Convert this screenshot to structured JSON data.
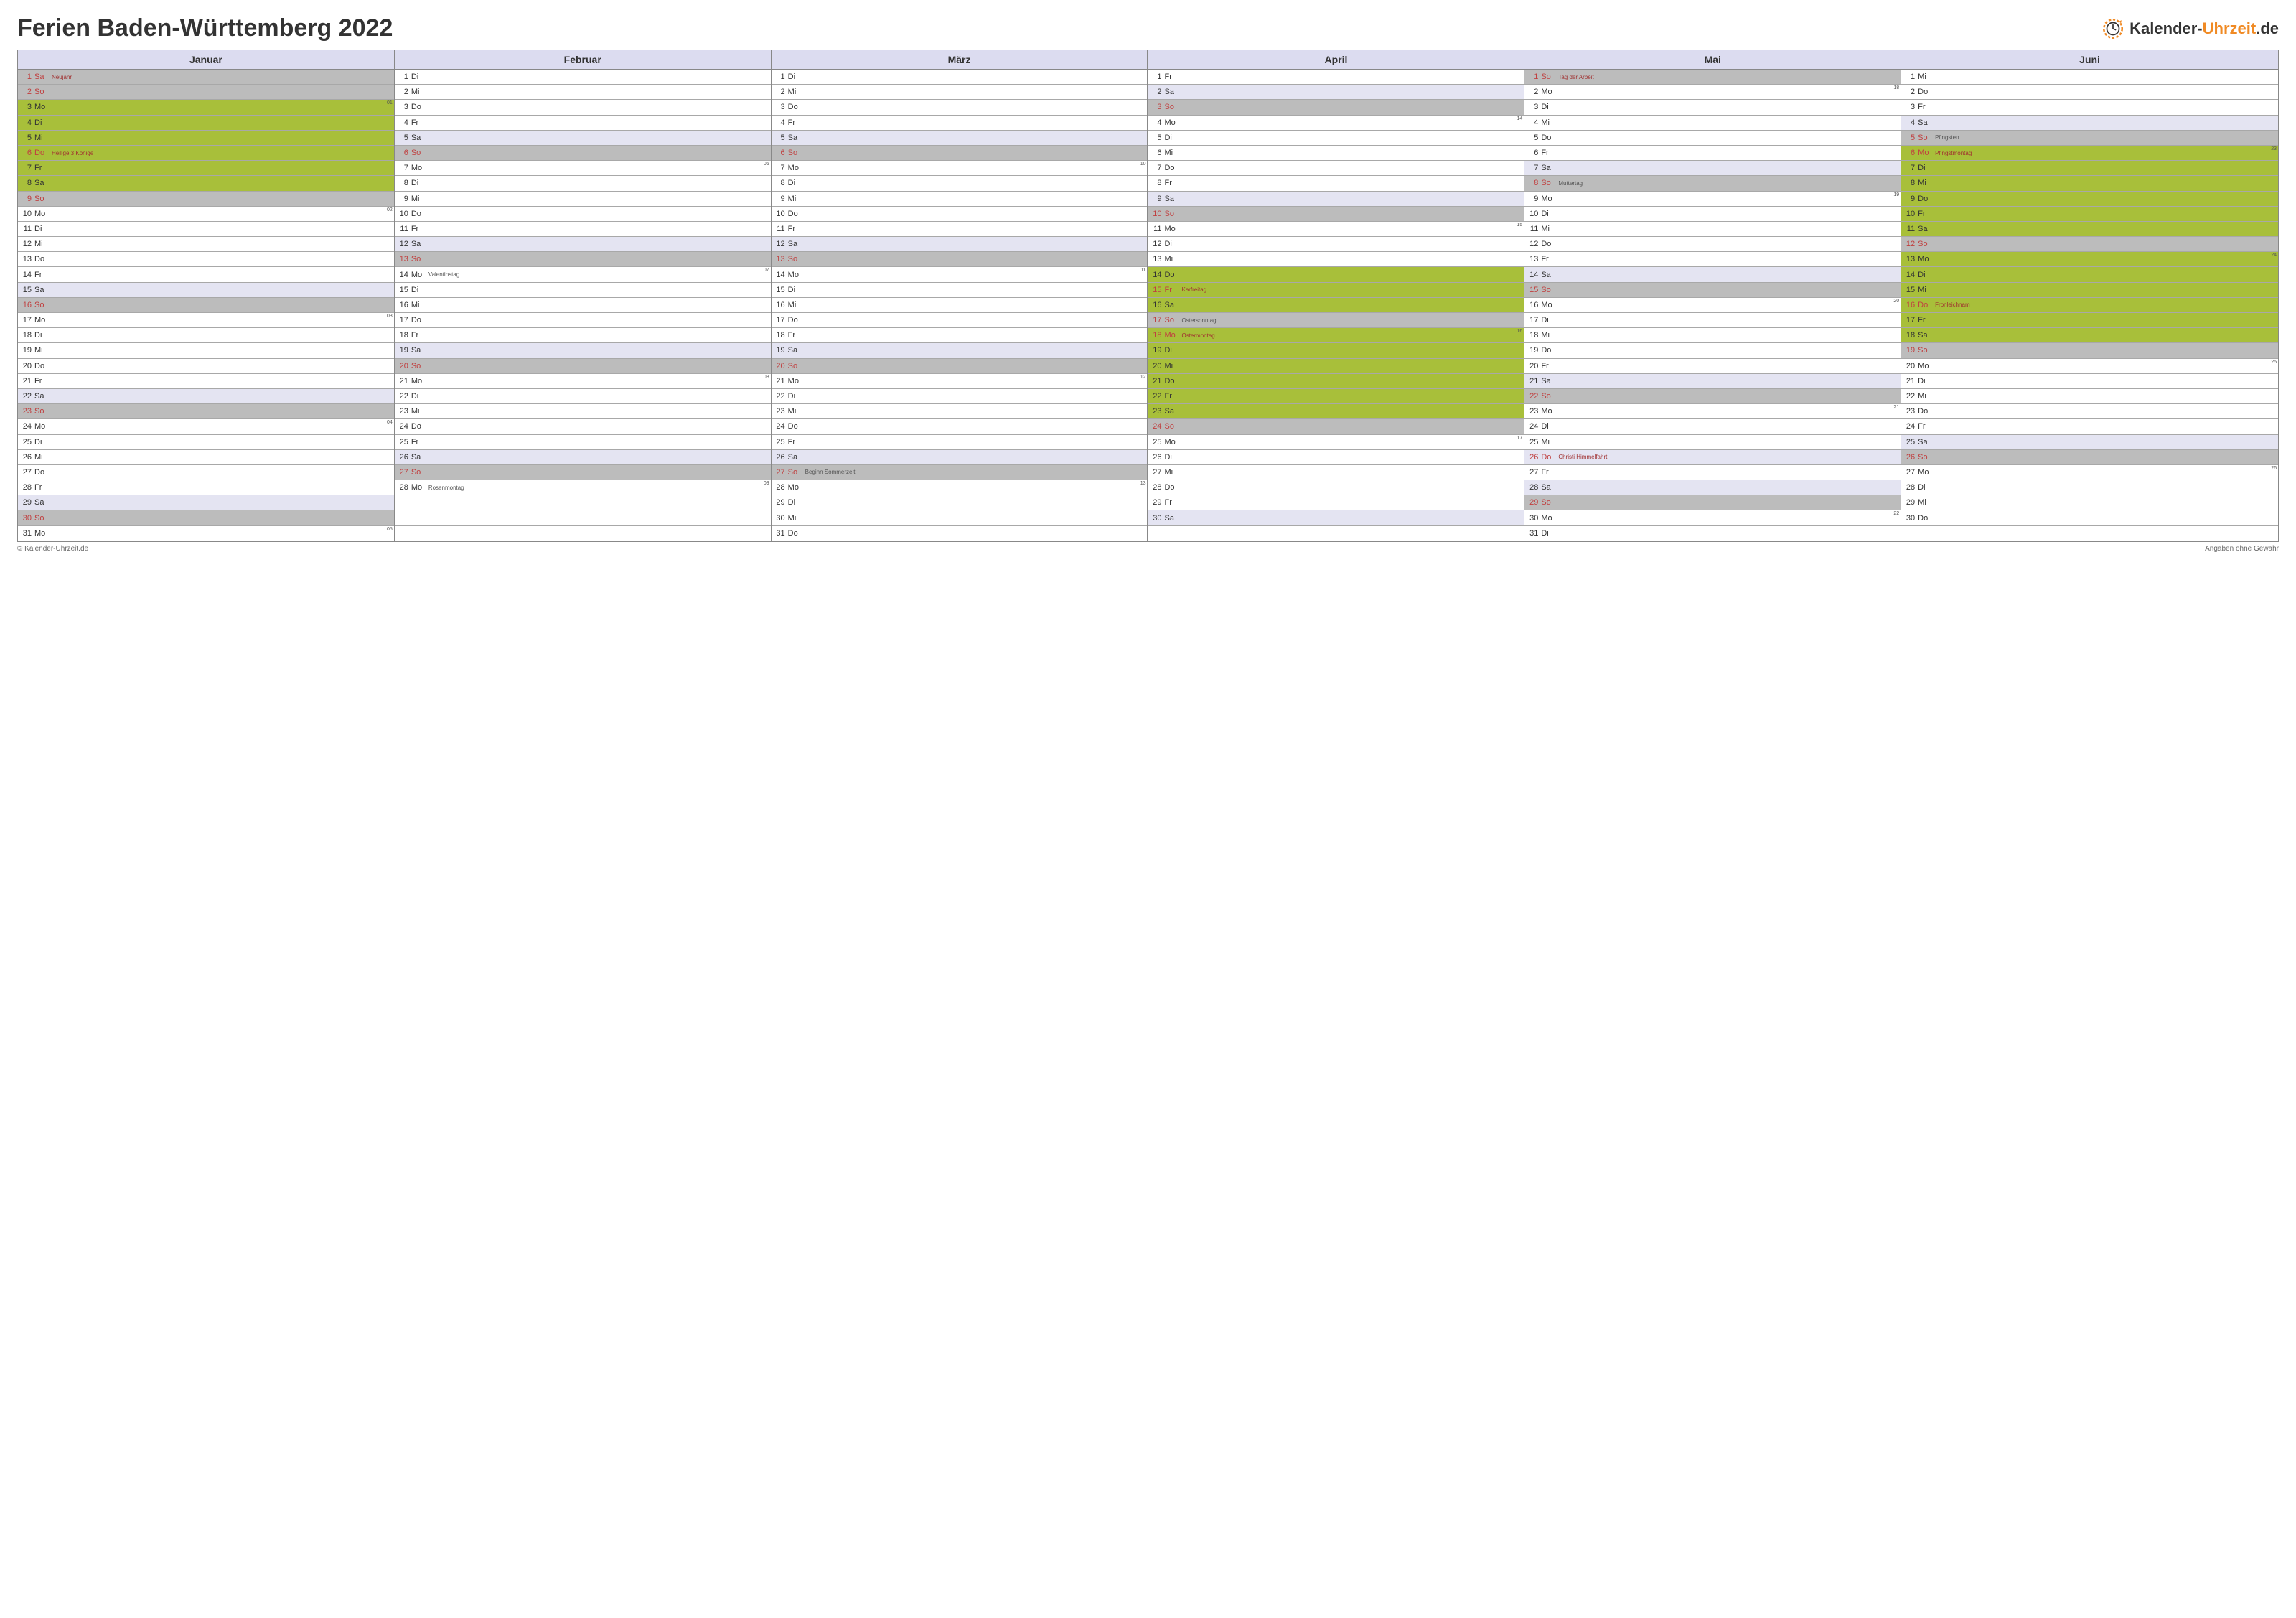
{
  "title": "Ferien Baden-Württemberg 2022",
  "logo": {
    "text_black": "Kalender-",
    "text_orange": "Uhrzeit",
    "suffix": ".de"
  },
  "footer": {
    "left": "© Kalender-Uhrzeit.de",
    "right": "Angaben ohne Gewähr"
  },
  "colors": {
    "white": "#ffffff",
    "satlight": "#e4e4f2",
    "sunday": "#bcbcbc",
    "holiday": "#a8bf3a",
    "header_bg": "#dcdcf0",
    "border": "#888888",
    "text": "#333333",
    "red": "#c04040",
    "note_red": "#a03030",
    "logo_orange": "#f08a24"
  },
  "months": [
    {
      "name": "Januar",
      "days": [
        {
          "n": 1,
          "dow": "Sa",
          "bg": "sunday",
          "red": true,
          "note": "Neujahr",
          "note_red": true
        },
        {
          "n": 2,
          "dow": "So",
          "bg": "sunday",
          "red": true
        },
        {
          "n": 3,
          "dow": "Mo",
          "bg": "holiday",
          "week": "01"
        },
        {
          "n": 4,
          "dow": "Di",
          "bg": "holiday"
        },
        {
          "n": 5,
          "dow": "Mi",
          "bg": "holiday"
        },
        {
          "n": 6,
          "dow": "Do",
          "bg": "holiday",
          "red": true,
          "note": "Heilige 3 Könige",
          "note_red": true
        },
        {
          "n": 7,
          "dow": "Fr",
          "bg": "holiday"
        },
        {
          "n": 8,
          "dow": "Sa",
          "bg": "holiday"
        },
        {
          "n": 9,
          "dow": "So",
          "bg": "sunday",
          "red": true
        },
        {
          "n": 10,
          "dow": "Mo",
          "bg": "white",
          "week": "02"
        },
        {
          "n": 11,
          "dow": "Di",
          "bg": "white"
        },
        {
          "n": 12,
          "dow": "Mi",
          "bg": "white"
        },
        {
          "n": 13,
          "dow": "Do",
          "bg": "white"
        },
        {
          "n": 14,
          "dow": "Fr",
          "bg": "white"
        },
        {
          "n": 15,
          "dow": "Sa",
          "bg": "satlight"
        },
        {
          "n": 16,
          "dow": "So",
          "bg": "sunday",
          "red": true
        },
        {
          "n": 17,
          "dow": "Mo",
          "bg": "white",
          "week": "03"
        },
        {
          "n": 18,
          "dow": "Di",
          "bg": "white"
        },
        {
          "n": 19,
          "dow": "Mi",
          "bg": "white"
        },
        {
          "n": 20,
          "dow": "Do",
          "bg": "white"
        },
        {
          "n": 21,
          "dow": "Fr",
          "bg": "white"
        },
        {
          "n": 22,
          "dow": "Sa",
          "bg": "satlight"
        },
        {
          "n": 23,
          "dow": "So",
          "bg": "sunday",
          "red": true
        },
        {
          "n": 24,
          "dow": "Mo",
          "bg": "white",
          "week": "04"
        },
        {
          "n": 25,
          "dow": "Di",
          "bg": "white"
        },
        {
          "n": 26,
          "dow": "Mi",
          "bg": "white"
        },
        {
          "n": 27,
          "dow": "Do",
          "bg": "white"
        },
        {
          "n": 28,
          "dow": "Fr",
          "bg": "white"
        },
        {
          "n": 29,
          "dow": "Sa",
          "bg": "satlight"
        },
        {
          "n": 30,
          "dow": "So",
          "bg": "sunday",
          "red": true
        },
        {
          "n": 31,
          "dow": "Mo",
          "bg": "white",
          "week": "05"
        }
      ]
    },
    {
      "name": "Februar",
      "days": [
        {
          "n": 1,
          "dow": "Di",
          "bg": "white"
        },
        {
          "n": 2,
          "dow": "Mi",
          "bg": "white"
        },
        {
          "n": 3,
          "dow": "Do",
          "bg": "white"
        },
        {
          "n": 4,
          "dow": "Fr",
          "bg": "white"
        },
        {
          "n": 5,
          "dow": "Sa",
          "bg": "satlight"
        },
        {
          "n": 6,
          "dow": "So",
          "bg": "sunday",
          "red": true
        },
        {
          "n": 7,
          "dow": "Mo",
          "bg": "white",
          "week": "06"
        },
        {
          "n": 8,
          "dow": "Di",
          "bg": "white"
        },
        {
          "n": 9,
          "dow": "Mi",
          "bg": "white"
        },
        {
          "n": 10,
          "dow": "Do",
          "bg": "white"
        },
        {
          "n": 11,
          "dow": "Fr",
          "bg": "white"
        },
        {
          "n": 12,
          "dow": "Sa",
          "bg": "satlight"
        },
        {
          "n": 13,
          "dow": "So",
          "bg": "sunday",
          "red": true
        },
        {
          "n": 14,
          "dow": "Mo",
          "bg": "white",
          "week": "07",
          "note": "Valentinstag"
        },
        {
          "n": 15,
          "dow": "Di",
          "bg": "white"
        },
        {
          "n": 16,
          "dow": "Mi",
          "bg": "white"
        },
        {
          "n": 17,
          "dow": "Do",
          "bg": "white"
        },
        {
          "n": 18,
          "dow": "Fr",
          "bg": "white"
        },
        {
          "n": 19,
          "dow": "Sa",
          "bg": "satlight"
        },
        {
          "n": 20,
          "dow": "So",
          "bg": "sunday",
          "red": true
        },
        {
          "n": 21,
          "dow": "Mo",
          "bg": "white",
          "week": "08"
        },
        {
          "n": 22,
          "dow": "Di",
          "bg": "white"
        },
        {
          "n": 23,
          "dow": "Mi",
          "bg": "white"
        },
        {
          "n": 24,
          "dow": "Do",
          "bg": "white"
        },
        {
          "n": 25,
          "dow": "Fr",
          "bg": "white"
        },
        {
          "n": 26,
          "dow": "Sa",
          "bg": "satlight"
        },
        {
          "n": 27,
          "dow": "So",
          "bg": "sunday",
          "red": true
        },
        {
          "n": 28,
          "dow": "Mo",
          "bg": "white",
          "week": "09",
          "note": "Rosenmontag"
        }
      ]
    },
    {
      "name": "März",
      "days": [
        {
          "n": 1,
          "dow": "Di",
          "bg": "white"
        },
        {
          "n": 2,
          "dow": "Mi",
          "bg": "white"
        },
        {
          "n": 3,
          "dow": "Do",
          "bg": "white"
        },
        {
          "n": 4,
          "dow": "Fr",
          "bg": "white"
        },
        {
          "n": 5,
          "dow": "Sa",
          "bg": "satlight"
        },
        {
          "n": 6,
          "dow": "So",
          "bg": "sunday",
          "red": true
        },
        {
          "n": 7,
          "dow": "Mo",
          "bg": "white",
          "week": "10"
        },
        {
          "n": 8,
          "dow": "Di",
          "bg": "white"
        },
        {
          "n": 9,
          "dow": "Mi",
          "bg": "white"
        },
        {
          "n": 10,
          "dow": "Do",
          "bg": "white"
        },
        {
          "n": 11,
          "dow": "Fr",
          "bg": "white"
        },
        {
          "n": 12,
          "dow": "Sa",
          "bg": "satlight"
        },
        {
          "n": 13,
          "dow": "So",
          "bg": "sunday",
          "red": true
        },
        {
          "n": 14,
          "dow": "Mo",
          "bg": "white",
          "week": "11"
        },
        {
          "n": 15,
          "dow": "Di",
          "bg": "white"
        },
        {
          "n": 16,
          "dow": "Mi",
          "bg": "white"
        },
        {
          "n": 17,
          "dow": "Do",
          "bg": "white"
        },
        {
          "n": 18,
          "dow": "Fr",
          "bg": "white"
        },
        {
          "n": 19,
          "dow": "Sa",
          "bg": "satlight"
        },
        {
          "n": 20,
          "dow": "So",
          "bg": "sunday",
          "red": true
        },
        {
          "n": 21,
          "dow": "Mo",
          "bg": "white",
          "week": "12"
        },
        {
          "n": 22,
          "dow": "Di",
          "bg": "white"
        },
        {
          "n": 23,
          "dow": "Mi",
          "bg": "white"
        },
        {
          "n": 24,
          "dow": "Do",
          "bg": "white"
        },
        {
          "n": 25,
          "dow": "Fr",
          "bg": "white"
        },
        {
          "n": 26,
          "dow": "Sa",
          "bg": "satlight"
        },
        {
          "n": 27,
          "dow": "So",
          "bg": "sunday",
          "red": true,
          "note": "Beginn Sommerzeit"
        },
        {
          "n": 28,
          "dow": "Mo",
          "bg": "white",
          "week": "13"
        },
        {
          "n": 29,
          "dow": "Di",
          "bg": "white"
        },
        {
          "n": 30,
          "dow": "Mi",
          "bg": "white"
        },
        {
          "n": 31,
          "dow": "Do",
          "bg": "white"
        }
      ]
    },
    {
      "name": "April",
      "days": [
        {
          "n": 1,
          "dow": "Fr",
          "bg": "white"
        },
        {
          "n": 2,
          "dow": "Sa",
          "bg": "satlight"
        },
        {
          "n": 3,
          "dow": "So",
          "bg": "sunday",
          "red": true
        },
        {
          "n": 4,
          "dow": "Mo",
          "bg": "white",
          "week": "14"
        },
        {
          "n": 5,
          "dow": "Di",
          "bg": "white"
        },
        {
          "n": 6,
          "dow": "Mi",
          "bg": "white"
        },
        {
          "n": 7,
          "dow": "Do",
          "bg": "white"
        },
        {
          "n": 8,
          "dow": "Fr",
          "bg": "white"
        },
        {
          "n": 9,
          "dow": "Sa",
          "bg": "satlight"
        },
        {
          "n": 10,
          "dow": "So",
          "bg": "sunday",
          "red": true
        },
        {
          "n": 11,
          "dow": "Mo",
          "bg": "white",
          "week": "15"
        },
        {
          "n": 12,
          "dow": "Di",
          "bg": "white"
        },
        {
          "n": 13,
          "dow": "Mi",
          "bg": "white"
        },
        {
          "n": 14,
          "dow": "Do",
          "bg": "holiday"
        },
        {
          "n": 15,
          "dow": "Fr",
          "bg": "holiday",
          "red": true,
          "note": "Karfreitag",
          "note_red": true
        },
        {
          "n": 16,
          "dow": "Sa",
          "bg": "holiday"
        },
        {
          "n": 17,
          "dow": "So",
          "bg": "sunday",
          "red": true,
          "note": "Ostersonntag"
        },
        {
          "n": 18,
          "dow": "Mo",
          "bg": "holiday",
          "red": true,
          "note": "Ostermontag",
          "note_red": true,
          "week": "16"
        },
        {
          "n": 19,
          "dow": "Di",
          "bg": "holiday"
        },
        {
          "n": 20,
          "dow": "Mi",
          "bg": "holiday"
        },
        {
          "n": 21,
          "dow": "Do",
          "bg": "holiday"
        },
        {
          "n": 22,
          "dow": "Fr",
          "bg": "holiday"
        },
        {
          "n": 23,
          "dow": "Sa",
          "bg": "holiday"
        },
        {
          "n": 24,
          "dow": "So",
          "bg": "sunday",
          "red": true
        },
        {
          "n": 25,
          "dow": "Mo",
          "bg": "white",
          "week": "17"
        },
        {
          "n": 26,
          "dow": "Di",
          "bg": "white"
        },
        {
          "n": 27,
          "dow": "Mi",
          "bg": "white"
        },
        {
          "n": 28,
          "dow": "Do",
          "bg": "white"
        },
        {
          "n": 29,
          "dow": "Fr",
          "bg": "white"
        },
        {
          "n": 30,
          "dow": "Sa",
          "bg": "satlight"
        }
      ]
    },
    {
      "name": "Mai",
      "days": [
        {
          "n": 1,
          "dow": "So",
          "bg": "sunday",
          "red": true,
          "note": "Tag der Arbeit",
          "note_red": true
        },
        {
          "n": 2,
          "dow": "Mo",
          "bg": "white",
          "week": "18"
        },
        {
          "n": 3,
          "dow": "Di",
          "bg": "white"
        },
        {
          "n": 4,
          "dow": "Mi",
          "bg": "white"
        },
        {
          "n": 5,
          "dow": "Do",
          "bg": "white"
        },
        {
          "n": 6,
          "dow": "Fr",
          "bg": "white"
        },
        {
          "n": 7,
          "dow": "Sa",
          "bg": "satlight"
        },
        {
          "n": 8,
          "dow": "So",
          "bg": "sunday",
          "red": true,
          "note": "Muttertag"
        },
        {
          "n": 9,
          "dow": "Mo",
          "bg": "white",
          "week": "19"
        },
        {
          "n": 10,
          "dow": "Di",
          "bg": "white"
        },
        {
          "n": 11,
          "dow": "Mi",
          "bg": "white"
        },
        {
          "n": 12,
          "dow": "Do",
          "bg": "white"
        },
        {
          "n": 13,
          "dow": "Fr",
          "bg": "white"
        },
        {
          "n": 14,
          "dow": "Sa",
          "bg": "satlight"
        },
        {
          "n": 15,
          "dow": "So",
          "bg": "sunday",
          "red": true
        },
        {
          "n": 16,
          "dow": "Mo",
          "bg": "white",
          "week": "20"
        },
        {
          "n": 17,
          "dow": "Di",
          "bg": "white"
        },
        {
          "n": 18,
          "dow": "Mi",
          "bg": "white"
        },
        {
          "n": 19,
          "dow": "Do",
          "bg": "white"
        },
        {
          "n": 20,
          "dow": "Fr",
          "bg": "white"
        },
        {
          "n": 21,
          "dow": "Sa",
          "bg": "satlight"
        },
        {
          "n": 22,
          "dow": "So",
          "bg": "sunday",
          "red": true
        },
        {
          "n": 23,
          "dow": "Mo",
          "bg": "white",
          "week": "21"
        },
        {
          "n": 24,
          "dow": "Di",
          "bg": "white"
        },
        {
          "n": 25,
          "dow": "Mi",
          "bg": "white"
        },
        {
          "n": 26,
          "dow": "Do",
          "bg": "satlight",
          "red": true,
          "note": "Christi Himmelfahrt",
          "note_red": true
        },
        {
          "n": 27,
          "dow": "Fr",
          "bg": "white"
        },
        {
          "n": 28,
          "dow": "Sa",
          "bg": "satlight"
        },
        {
          "n": 29,
          "dow": "So",
          "bg": "sunday",
          "red": true
        },
        {
          "n": 30,
          "dow": "Mo",
          "bg": "white",
          "week": "22"
        },
        {
          "n": 31,
          "dow": "Di",
          "bg": "white"
        }
      ]
    },
    {
      "name": "Juni",
      "days": [
        {
          "n": 1,
          "dow": "Mi",
          "bg": "white"
        },
        {
          "n": 2,
          "dow": "Do",
          "bg": "white"
        },
        {
          "n": 3,
          "dow": "Fr",
          "bg": "white"
        },
        {
          "n": 4,
          "dow": "Sa",
          "bg": "satlight"
        },
        {
          "n": 5,
          "dow": "So",
          "bg": "sunday",
          "red": true,
          "note": "Pfingsten"
        },
        {
          "n": 6,
          "dow": "Mo",
          "bg": "holiday",
          "red": true,
          "note": "Pfingstmontag",
          "note_red": true,
          "week": "23"
        },
        {
          "n": 7,
          "dow": "Di",
          "bg": "holiday"
        },
        {
          "n": 8,
          "dow": "Mi",
          "bg": "holiday"
        },
        {
          "n": 9,
          "dow": "Do",
          "bg": "holiday"
        },
        {
          "n": 10,
          "dow": "Fr",
          "bg": "holiday"
        },
        {
          "n": 11,
          "dow": "Sa",
          "bg": "holiday"
        },
        {
          "n": 12,
          "dow": "So",
          "bg": "sunday",
          "red": true
        },
        {
          "n": 13,
          "dow": "Mo",
          "bg": "holiday",
          "week": "24"
        },
        {
          "n": 14,
          "dow": "Di",
          "bg": "holiday"
        },
        {
          "n": 15,
          "dow": "Mi",
          "bg": "holiday"
        },
        {
          "n": 16,
          "dow": "Do",
          "bg": "holiday",
          "red": true,
          "note": "Fronleichnam",
          "note_red": true
        },
        {
          "n": 17,
          "dow": "Fr",
          "bg": "holiday"
        },
        {
          "n": 18,
          "dow": "Sa",
          "bg": "holiday"
        },
        {
          "n": 19,
          "dow": "So",
          "bg": "sunday",
          "red": true
        },
        {
          "n": 20,
          "dow": "Mo",
          "bg": "white",
          "week": "25"
        },
        {
          "n": 21,
          "dow": "Di",
          "bg": "white"
        },
        {
          "n": 22,
          "dow": "Mi",
          "bg": "white"
        },
        {
          "n": 23,
          "dow": "Do",
          "bg": "white"
        },
        {
          "n": 24,
          "dow": "Fr",
          "bg": "white"
        },
        {
          "n": 25,
          "dow": "Sa",
          "bg": "satlight"
        },
        {
          "n": 26,
          "dow": "So",
          "bg": "sunday",
          "red": true
        },
        {
          "n": 27,
          "dow": "Mo",
          "bg": "white",
          "week": "26"
        },
        {
          "n": 28,
          "dow": "Di",
          "bg": "white"
        },
        {
          "n": 29,
          "dow": "Mi",
          "bg": "white"
        },
        {
          "n": 30,
          "dow": "Do",
          "bg": "white"
        }
      ]
    }
  ]
}
